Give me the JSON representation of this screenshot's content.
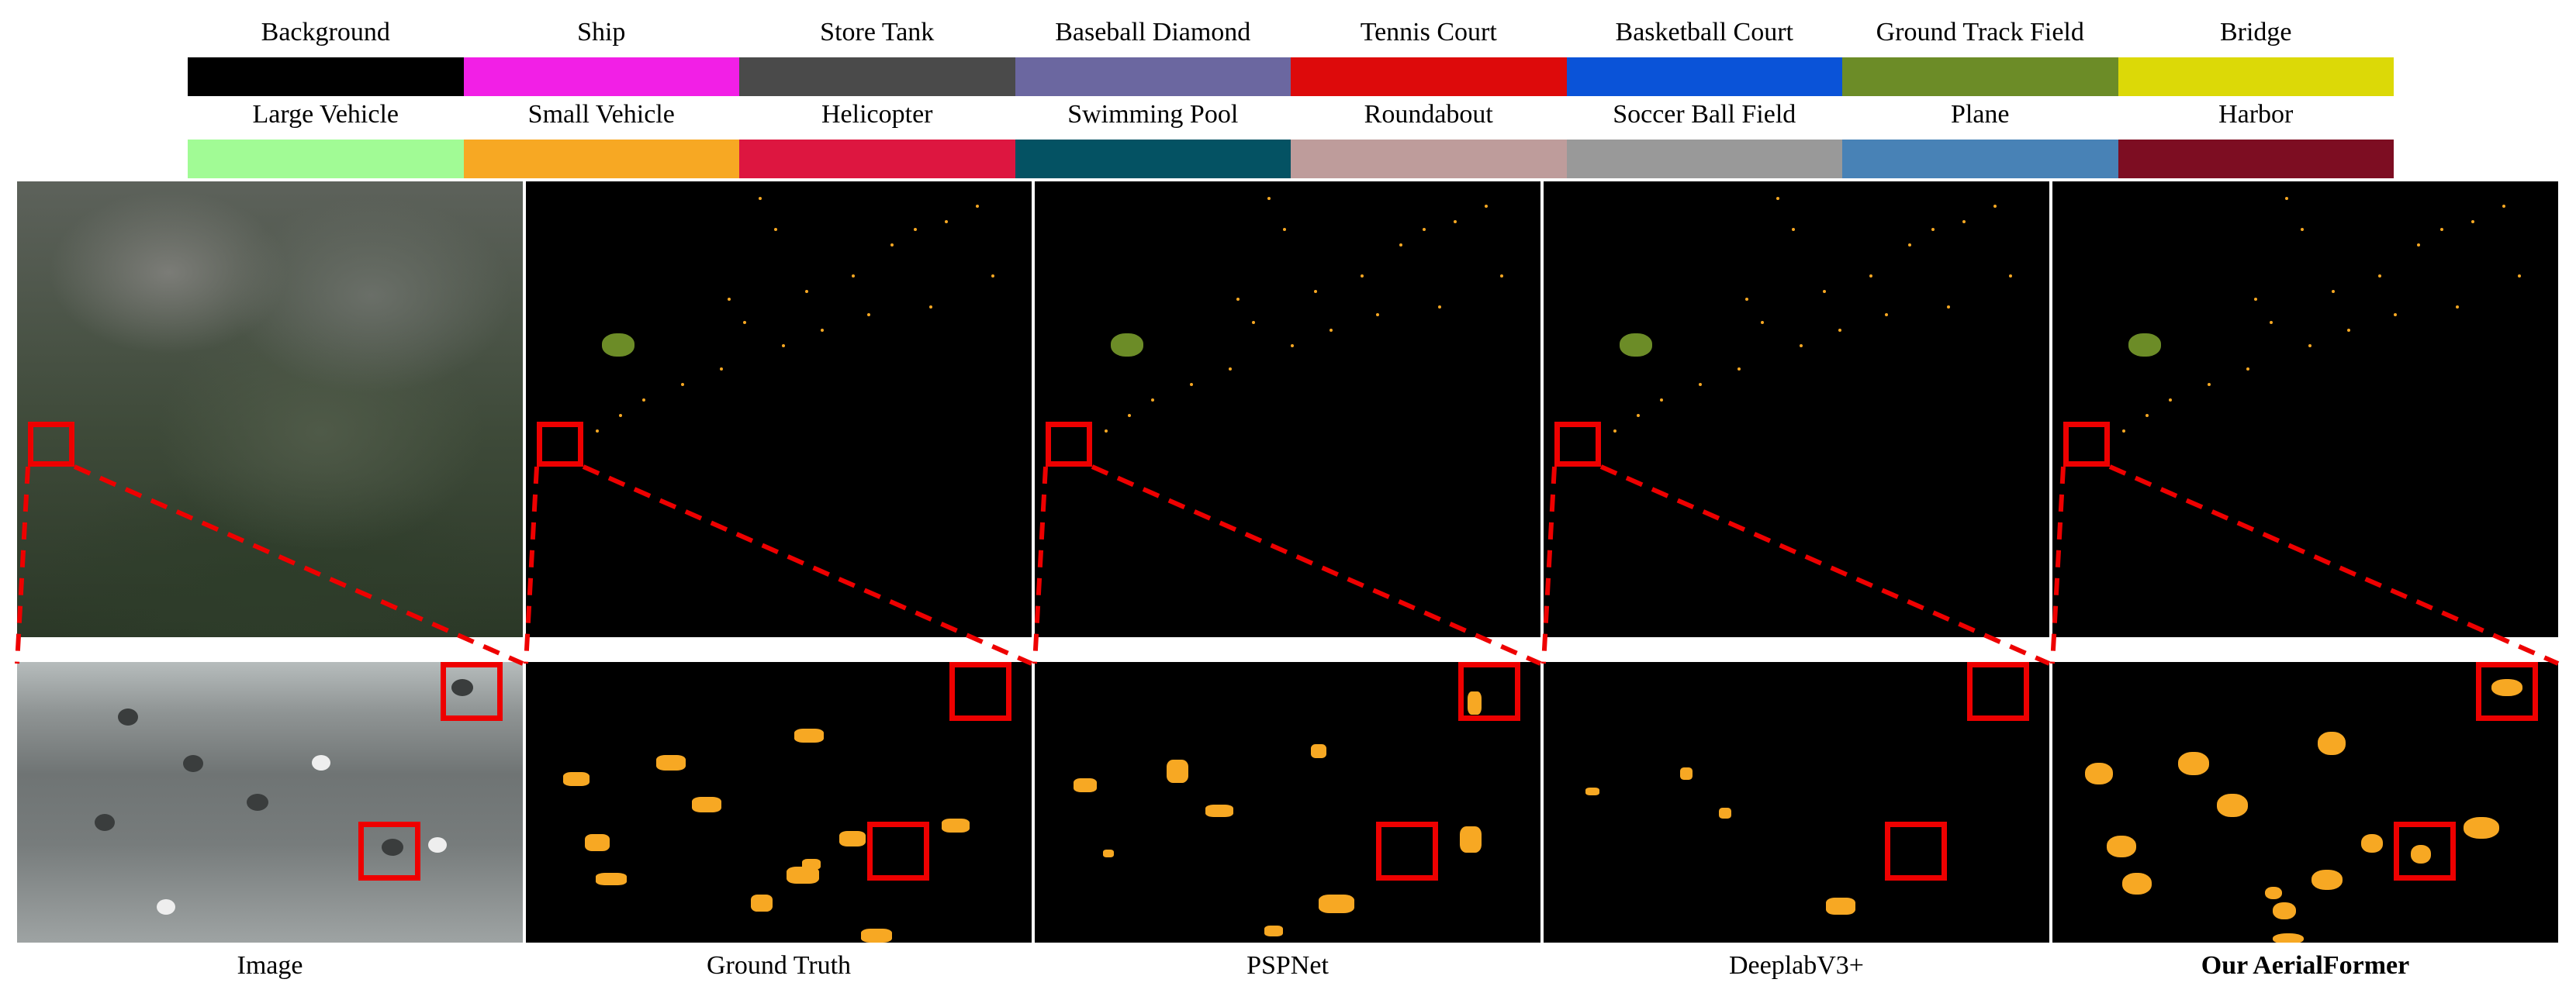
{
  "legend": {
    "row1": [
      {
        "label": "Background",
        "color": "#000000"
      },
      {
        "label": "Ship",
        "color": "#f21fe6"
      },
      {
        "label": "Store Tank",
        "color": "#4a4a4a"
      },
      {
        "label": "Baseball Diamond",
        "color": "#6b67a0"
      },
      {
        "label": "Tennis Court",
        "color": "#dd0a0b"
      },
      {
        "label": "Basketball Court",
        "color": "#0a53d8"
      },
      {
        "label": "Ground Track Field",
        "color": "#6c8c27"
      },
      {
        "label": "Bridge",
        "color": "#dcd907"
      }
    ],
    "row2": [
      {
        "label": "Large Vehicle",
        "color": "#a1fb95"
      },
      {
        "label": "Small Vehicle",
        "color": "#f7a823"
      },
      {
        "label": "Helicopter",
        "color": "#dd1640"
      },
      {
        "label": "Swimming Pool",
        "color": "#045263"
      },
      {
        "label": "Roundabout",
        "color": "#be9c9b"
      },
      {
        "label": "Soccer Ball Field",
        "color": "#999999"
      },
      {
        "label": "Plane",
        "color": "#4882b6"
      },
      {
        "label": "Harbor",
        "color": "#7d0d22"
      }
    ]
  },
  "captions": {
    "image": "Image",
    "gt": "Ground Truth",
    "pspnet": "PSPNet",
    "deeplab": "DeeplabV3+",
    "ours": "Our AerialFormer"
  },
  "colors": {
    "highlight": "#ee0000",
    "small_vehicle": "#f7a823",
    "ground_track": "#6c8c27"
  }
}
